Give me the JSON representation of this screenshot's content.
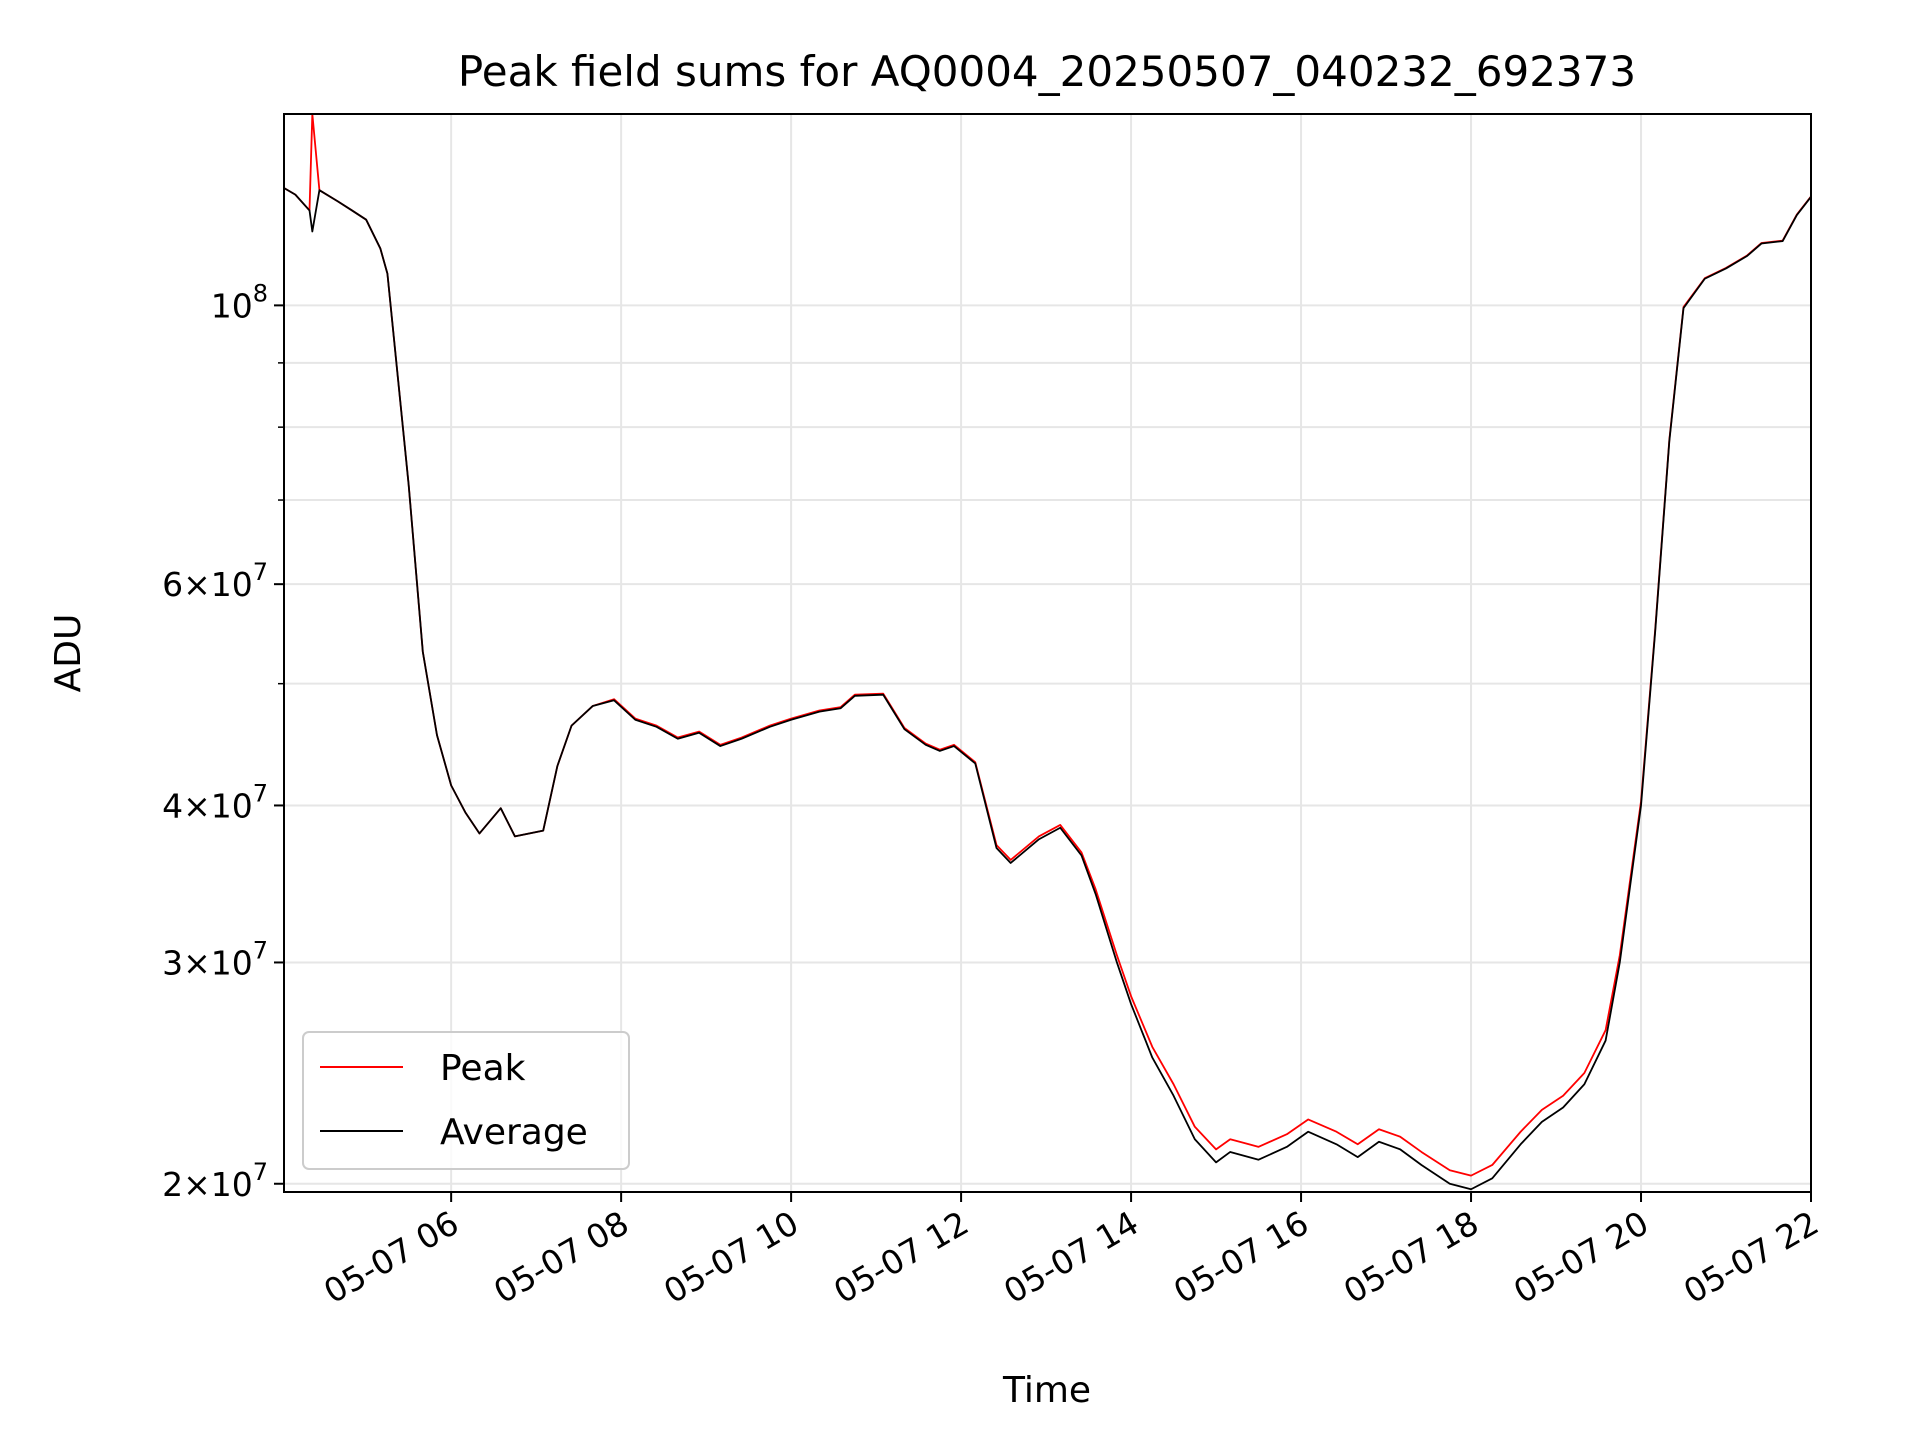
{
  "chart_data": {
    "type": "line",
    "title": "Peak field sums for AQ0004_20250507_040232_692373",
    "xlabel": "Time",
    "ylabel": "ADU",
    "yscale": "log",
    "grid": true,
    "legend_position": "bottom-left",
    "xlim": [
      "2025-05-07 04:02",
      "2025-05-07 22:00"
    ],
    "ylim": [
      19700000,
      142000000
    ],
    "x_ticks": [
      {
        "value": "2025-05-07 06:00",
        "label": "05-07 06"
      },
      {
        "value": "2025-05-07 08:00",
        "label": "05-07 08"
      },
      {
        "value": "2025-05-07 10:00",
        "label": "05-07 10"
      },
      {
        "value": "2025-05-07 12:00",
        "label": "05-07 12"
      },
      {
        "value": "2025-05-07 14:00",
        "label": "05-07 14"
      },
      {
        "value": "2025-05-07 16:00",
        "label": "05-07 16"
      },
      {
        "value": "2025-05-07 18:00",
        "label": "05-07 18"
      },
      {
        "value": "2025-05-07 20:00",
        "label": "05-07 20"
      },
      {
        "value": "2025-05-07 22:00",
        "label": "05-07 22"
      }
    ],
    "y_ticks": [
      {
        "value": 20000000,
        "base": "2×10",
        "exp": "7"
      },
      {
        "value": 30000000,
        "base": "3×10",
        "exp": "7"
      },
      {
        "value": 40000000,
        "base": "4×10",
        "exp": "7"
      },
      {
        "value": 60000000,
        "base": "6×10",
        "exp": "7"
      },
      {
        "value": 100000000,
        "base": "10",
        "exp": "8"
      }
    ],
    "y_minor_ticks": [
      50000000,
      70000000,
      80000000,
      90000000
    ],
    "x": [
      "2025-05-07 04:02",
      "2025-05-07 04:10",
      "2025-05-07 04:20",
      "2025-05-07 04:22",
      "2025-05-07 04:27",
      "2025-05-07 04:40",
      "2025-05-07 04:50",
      "2025-05-07 05:00",
      "2025-05-07 05:10",
      "2025-05-07 05:15",
      "2025-05-07 05:30",
      "2025-05-07 05:40",
      "2025-05-07 05:50",
      "2025-05-07 06:00",
      "2025-05-07 06:10",
      "2025-05-07 06:20",
      "2025-05-07 06:35",
      "2025-05-07 06:45",
      "2025-05-07 06:55",
      "2025-05-07 07:05",
      "2025-05-07 07:15",
      "2025-05-07 07:25",
      "2025-05-07 07:40",
      "2025-05-07 07:55",
      "2025-05-07 08:10",
      "2025-05-07 08:25",
      "2025-05-07 08:40",
      "2025-05-07 08:55",
      "2025-05-07 09:10",
      "2025-05-07 09:25",
      "2025-05-07 09:45",
      "2025-05-07 10:00",
      "2025-05-07 10:20",
      "2025-05-07 10:35",
      "2025-05-07 10:45",
      "2025-05-07 11:05",
      "2025-05-07 11:20",
      "2025-05-07 11:35",
      "2025-05-07 11:45",
      "2025-05-07 11:55",
      "2025-05-07 12:10",
      "2025-05-07 12:25",
      "2025-05-07 12:35",
      "2025-05-07 12:55",
      "2025-05-07 13:10",
      "2025-05-07 13:25",
      "2025-05-07 13:35",
      "2025-05-07 13:50",
      "2025-05-07 14:00",
      "2025-05-07 14:15",
      "2025-05-07 14:30",
      "2025-05-07 14:45",
      "2025-05-07 15:00",
      "2025-05-07 15:10",
      "2025-05-07 15:30",
      "2025-05-07 15:50",
      "2025-05-07 16:05",
      "2025-05-07 16:25",
      "2025-05-07 16:40",
      "2025-05-07 16:55",
      "2025-05-07 17:10",
      "2025-05-07 17:25",
      "2025-05-07 17:45",
      "2025-05-07 18:00",
      "2025-05-07 18:15",
      "2025-05-07 18:35",
      "2025-05-07 18:50",
      "2025-05-07 19:05",
      "2025-05-07 19:20",
      "2025-05-07 19:35",
      "2025-05-07 19:45",
      "2025-05-07 20:00",
      "2025-05-07 20:10",
      "2025-05-07 20:20",
      "2025-05-07 20:30",
      "2025-05-07 20:45",
      "2025-05-07 21:00",
      "2025-05-07 21:15",
      "2025-05-07 21:25",
      "2025-05-07 21:40",
      "2025-05-07 21:50",
      "2025-05-07 22:00"
    ],
    "series": [
      {
        "name": "Average",
        "color": "#000000",
        "values": [
          124000000,
          122500000,
          119000000,
          114500000,
          123500000,
          121000000,
          119000000,
          117000000,
          111000000,
          106000000,
          72000000,
          53000000,
          45500000,
          41500000,
          39500000,
          38000000,
          39800000,
          37800000,
          38000000,
          38200000,
          43000000,
          46300000,
          48000000,
          48500000,
          46800000,
          46200000,
          45200000,
          45700000,
          44600000,
          45200000,
          46200000,
          46800000,
          47500000,
          47800000,
          48900000,
          49000000,
          46000000,
          44700000,
          44200000,
          44600000,
          43200000,
          37000000,
          36000000,
          37600000,
          38400000,
          36500000,
          34000000,
          30000000,
          27800000,
          25200000,
          23500000,
          21700000,
          20800000,
          21200000,
          20900000,
          21400000,
          22000000,
          21500000,
          21000000,
          21600000,
          21300000,
          20700000,
          20000000,
          19800000,
          20200000,
          21500000,
          22400000,
          23000000,
          24000000,
          26000000,
          30000000,
          40000000,
          55000000,
          78000000,
          99500000,
          105000000,
          107000000,
          109500000,
          112000000,
          112500000,
          118000000,
          122000000
        ]
      },
      {
        "name": "Peak",
        "color": "#ff0000",
        "values": [
          124000000,
          122500000,
          119000000,
          142000000,
          123500000,
          121000000,
          119000000,
          117000000,
          111000000,
          106000000,
          72000000,
          53000000,
          45500000,
          41500000,
          39500000,
          38000000,
          39800000,
          37800000,
          38000000,
          38200000,
          43000000,
          46300000,
          48000000,
          48600000,
          46900000,
          46300000,
          45300000,
          45800000,
          44700000,
          45300000,
          46300000,
          46900000,
          47600000,
          47900000,
          49000000,
          49100000,
          46100000,
          44800000,
          44300000,
          44700000,
          43300000,
          37200000,
          36200000,
          37800000,
          38600000,
          36700000,
          34300000,
          30400000,
          28200000,
          25700000,
          24000000,
          22200000,
          21300000,
          21700000,
          21400000,
          21900000,
          22500000,
          22000000,
          21500000,
          22100000,
          21800000,
          21200000,
          20500000,
          20300000,
          20700000,
          22000000,
          22900000,
          23500000,
          24500000,
          26500000,
          30400000,
          40300000,
          55200000,
          78200000,
          99700000,
          105100000,
          107100000,
          109600000,
          112100000,
          112600000,
          118100000,
          122100000
        ]
      }
    ]
  }
}
